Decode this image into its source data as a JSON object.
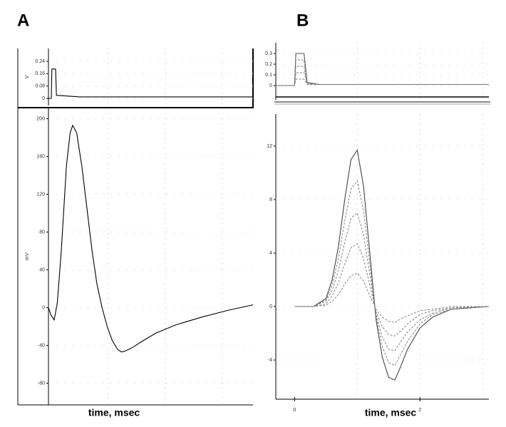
{
  "panel_labels": [
    "A",
    "B"
  ],
  "chart_data": [
    {
      "type": "line",
      "y_label": "V",
      "x": [
        -0.1,
        0,
        0.02,
        0.15,
        0.18,
        1,
        7.075
      ],
      "series": [
        {
          "color": "#000000",
          "dash": false,
          "values": [
            0,
            0,
            0.19,
            0.19,
            0.02,
            0.01,
            0.01
          ]
        }
      ],
      "xlim": [
        -0.1,
        7.075
      ],
      "ylim": [
        -0.046,
        0.323
      ],
      "yticks": [
        0,
        0.08,
        0.16,
        0.24
      ],
      "xgrid": [
        2,
        4,
        6
      ]
    },
    {
      "type": "line",
      "y_label": "mV",
      "x_label": "time, msec",
      "x": [
        -0.1,
        -0.01,
        0.1,
        0.21,
        0.35,
        0.53,
        0.66,
        0.75,
        0.89,
        1.07,
        1.25,
        1.43,
        1.6,
        1.78,
        1.96,
        2.14,
        2.32,
        2.46,
        2.59,
        2.86,
        3.22,
        3.67,
        4.39,
        5.28,
        6.18,
        7.075
      ],
      "series": [
        {
          "color": "#000000",
          "dash": false,
          "values": [
            0,
            -8,
            -13,
            5,
            60,
            150,
            185,
            193,
            185,
            150,
            105,
            60,
            25,
            0,
            -20,
            -35,
            -44,
            -47,
            -46,
            -42,
            -35,
            -27,
            -18,
            -10,
            -3,
            3
          ]
        }
      ],
      "xlim": [
        -0.1,
        7.075
      ],
      "ylim": [
        -103,
        211
      ],
      "yticks": [
        -80,
        -40,
        0,
        40,
        80,
        120,
        160,
        200
      ],
      "xgrid": [
        2,
        4,
        6
      ]
    },
    {
      "type": "line",
      "x": [
        -0.3,
        0,
        0.02,
        0.15,
        0.2,
        0.4,
        3.1
      ],
      "series": [
        {
          "color": "#555555",
          "dash": false,
          "values": [
            0,
            0,
            0.3,
            0.3,
            0.03,
            0.01,
            0.01
          ]
        },
        {
          "color": "#777777",
          "dash": true,
          "values": [
            0,
            0,
            0.24,
            0.24,
            0.03,
            0.01,
            0.01
          ]
        },
        {
          "color": "#777777",
          "dash": true,
          "values": [
            0,
            0,
            0.18,
            0.18,
            0.02,
            0.01,
            0.01
          ]
        },
        {
          "color": "#777777",
          "dash": true,
          "values": [
            0,
            0,
            0.12,
            0.12,
            0.02,
            0.01,
            0.01
          ]
        },
        {
          "color": "#777777",
          "dash": true,
          "values": [
            0,
            0,
            0.06,
            0.06,
            0.01,
            0.01,
            0.01
          ]
        }
      ],
      "xlim": [
        -0.3,
        3.1
      ],
      "ylim": [
        -0.133,
        0.4
      ],
      "yticks": [
        0,
        0.1,
        0.2,
        0.3
      ],
      "xgrid": [
        1,
        2,
        3
      ]
    },
    {
      "type": "line",
      "x_label": "time, msec",
      "x": [
        0,
        0.3,
        0.5,
        0.6,
        0.7,
        0.8,
        0.9,
        1.0,
        1.1,
        1.2,
        1.3,
        1.4,
        1.5,
        1.6,
        1.7,
        1.8,
        2.0,
        2.2,
        2.5,
        3.1
      ],
      "series": [
        {
          "color": "#444444",
          "dash": false,
          "values": [
            0,
            0,
            0.6,
            2.0,
            4.5,
            8.0,
            11.0,
            11.7,
            9.0,
            4.0,
            -1.0,
            -3.8,
            -5.3,
            -5.5,
            -4.4,
            -3.2,
            -1.6,
            -0.8,
            -0.2,
            0
          ]
        },
        {
          "color": "#777777",
          "dash": true,
          "values": [
            0,
            0,
            0.5,
            1.6,
            3.6,
            6.4,
            8.8,
            9.4,
            7.2,
            3.2,
            -0.8,
            -3.0,
            -4.2,
            -4.4,
            -3.5,
            -2.6,
            -1.3,
            -0.6,
            -0.2,
            0
          ]
        },
        {
          "color": "#777777",
          "dash": true,
          "values": [
            0,
            0,
            0.4,
            1.2,
            2.7,
            4.8,
            6.6,
            7.0,
            5.4,
            2.4,
            -0.6,
            -2.3,
            -3.2,
            -3.3,
            -2.6,
            -1.9,
            -1.0,
            -0.5,
            -0.1,
            0
          ]
        },
        {
          "color": "#777777",
          "dash": true,
          "values": [
            0,
            0,
            0.2,
            0.8,
            1.8,
            3.2,
            4.4,
            4.7,
            3.6,
            1.6,
            -0.4,
            -1.5,
            -2.1,
            -2.2,
            -1.8,
            -1.3,
            -0.6,
            -0.3,
            -0.1,
            0
          ]
        },
        {
          "color": "#777777",
          "dash": true,
          "values": [
            0,
            0,
            0.1,
            0.4,
            0.9,
            1.7,
            2.3,
            2.5,
            1.9,
            0.8,
            -0.2,
            -0.8,
            -1.1,
            -1.2,
            -0.9,
            -0.7,
            -0.3,
            -0.2,
            0,
            0
          ]
        }
      ],
      "xlim": [
        -0.3,
        3.1
      ],
      "ylim": [
        -6.93,
        14.4
      ],
      "yticks": [
        -4,
        0,
        4,
        8,
        12
      ],
      "xticks": [
        0,
        2
      ],
      "xgrid": [
        1,
        2,
        3
      ]
    }
  ]
}
